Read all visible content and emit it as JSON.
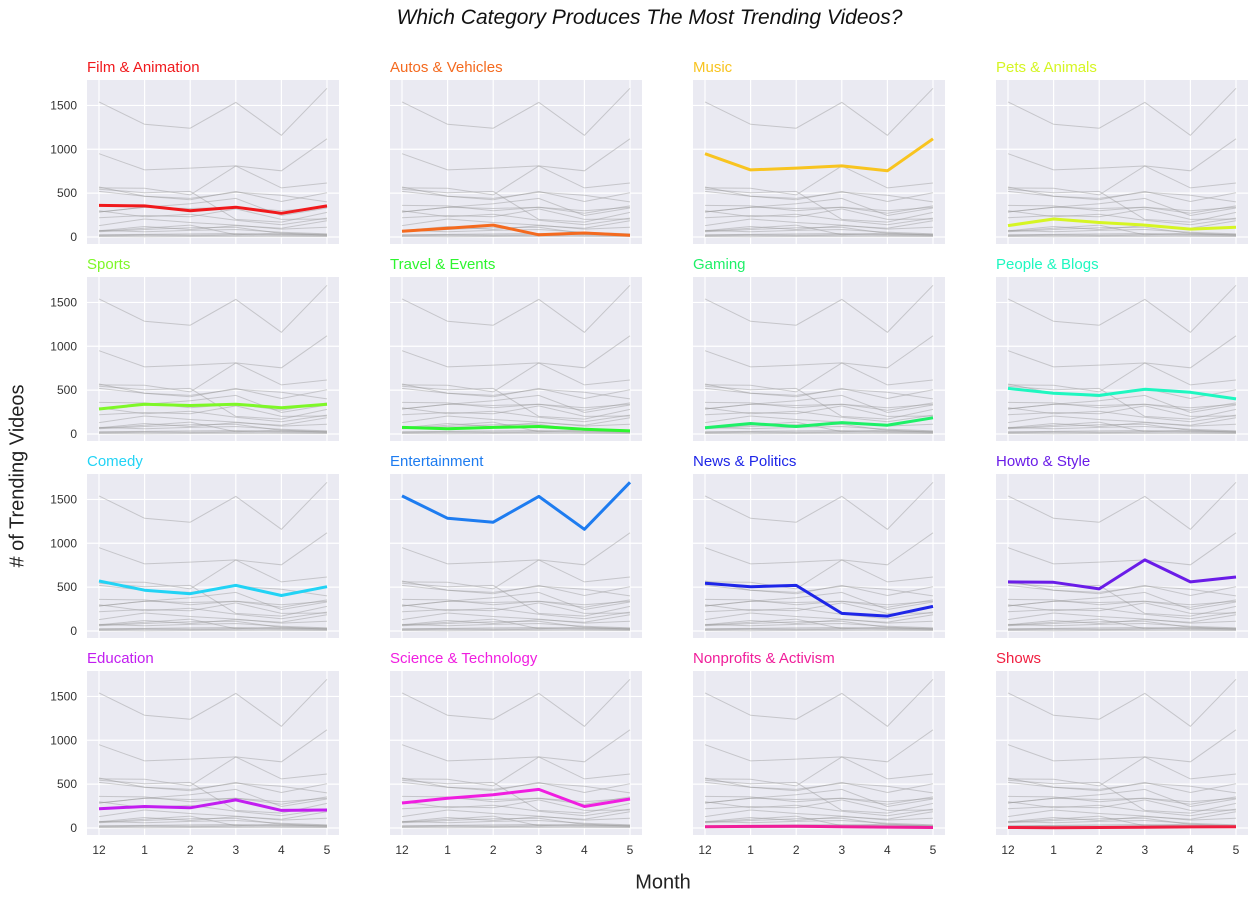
{
  "chart_data": {
    "type": "line",
    "title": "Which Category Produces The Most Trending Videos?",
    "xlabel": "Month",
    "ylabel": "# of Trending Videos",
    "x": [
      12,
      1,
      2,
      3,
      4,
      5
    ],
    "x_tick_labels": [
      "12",
      "1",
      "2",
      "3",
      "4",
      "5"
    ],
    "y_ticks": [
      0,
      500,
      1000,
      1500
    ],
    "ylim": [
      -80,
      1790
    ],
    "grid": true,
    "layout": "4x4 small multiples, each highlighting one category over all others in grey",
    "series": [
      {
        "name": "Film & Animation",
        "color": "#f0191c",
        "values": [
          360,
          355,
          300,
          340,
          270,
          355
        ]
      },
      {
        "name": "Autos & Vehicles",
        "color": "#f46a1f",
        "values": [
          65,
          100,
          135,
          25,
          45,
          20
        ]
      },
      {
        "name": "Music",
        "color": "#f8c420",
        "values": [
          950,
          765,
          785,
          810,
          755,
          1120
        ]
      },
      {
        "name": "Pets & Animals",
        "color": "#d6f524",
        "values": [
          130,
          205,
          165,
          135,
          90,
          110
        ]
      },
      {
        "name": "Sports",
        "color": "#7ef728",
        "values": [
          285,
          340,
          325,
          340,
          300,
          340
        ]
      },
      {
        "name": "Travel & Events",
        "color": "#2df52f",
        "values": [
          75,
          60,
          75,
          85,
          55,
          35
        ]
      },
      {
        "name": "Gaming",
        "color": "#1ef068",
        "values": [
          70,
          120,
          85,
          130,
          100,
          185
        ]
      },
      {
        "name": "People & Blogs",
        "color": "#1ef7c0",
        "values": [
          520,
          465,
          440,
          510,
          475,
          400
        ]
      },
      {
        "name": "Comedy",
        "color": "#22d3f5",
        "values": [
          570,
          465,
          425,
          520,
          405,
          505
        ]
      },
      {
        "name": "Entertainment",
        "color": "#1e7cf0",
        "values": [
          1540,
          1285,
          1240,
          1535,
          1160,
          1695
        ]
      },
      {
        "name": "News & Politics",
        "color": "#1e26e8",
        "values": [
          545,
          505,
          520,
          200,
          170,
          280
        ]
      },
      {
        "name": "Howto & Style",
        "color": "#6a1ce8",
        "values": [
          560,
          555,
          480,
          810,
          560,
          615
        ]
      },
      {
        "name": "Education",
        "color": "#c21ef0",
        "values": [
          220,
          245,
          230,
          320,
          200,
          205
        ]
      },
      {
        "name": "Science & Technology",
        "color": "#f01ee0",
        "values": [
          285,
          340,
          380,
          440,
          245,
          330
        ]
      },
      {
        "name": "Nonprofits & Activism",
        "color": "#f01e9a",
        "values": [
          15,
          18,
          20,
          15,
          10,
          5
        ]
      },
      {
        "name": "Shows",
        "color": "#f01e40",
        "values": [
          5,
          3,
          6,
          8,
          12,
          14
        ]
      }
    ],
    "background_series": [
      {
        "values": [
          60,
          85,
          105,
          110,
          40,
          30
        ]
      },
      {
        "values": [
          25,
          30,
          35,
          40,
          30,
          25
        ]
      },
      {
        "values": [
          20,
          25,
          20,
          30,
          25,
          20
        ]
      },
      {
        "values": [
          300,
          230,
          260,
          190,
          140,
          215
        ]
      }
    ]
  }
}
